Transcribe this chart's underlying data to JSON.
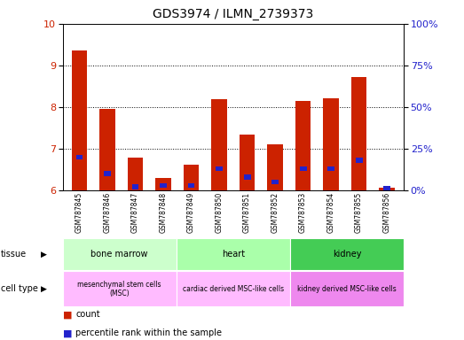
{
  "title": "GDS3974 / ILMN_2739373",
  "samples": [
    "GSM787845",
    "GSM787846",
    "GSM787847",
    "GSM787848",
    "GSM787849",
    "GSM787850",
    "GSM787851",
    "GSM787852",
    "GSM787853",
    "GSM787854",
    "GSM787855",
    "GSM787856"
  ],
  "count_values": [
    9.37,
    7.95,
    6.78,
    6.3,
    6.62,
    8.18,
    7.35,
    7.1,
    8.15,
    8.22,
    8.73,
    6.07
  ],
  "percentile_values": [
    20,
    10,
    2,
    3,
    3,
    13,
    8,
    5,
    13,
    13,
    18,
    1
  ],
  "ylim_left": [
    6,
    10
  ],
  "ylim_right": [
    0,
    100
  ],
  "yticks_left": [
    6,
    7,
    8,
    9,
    10
  ],
  "yticks_right": [
    0,
    25,
    50,
    75,
    100
  ],
  "bar_color_red": "#cc2200",
  "bar_color_blue": "#2222cc",
  "tissue_data": [
    {
      "label": "bone marrow",
      "start": 0,
      "end": 4,
      "color": "#ccffcc"
    },
    {
      "label": "heart",
      "start": 4,
      "end": 8,
      "color": "#aaffaa"
    },
    {
      "label": "kidney",
      "start": 8,
      "end": 12,
      "color": "#44cc55"
    }
  ],
  "cell_data": [
    {
      "label": "mesenchymal stem cells\n(MSC)",
      "start": 0,
      "end": 4,
      "color": "#ffbbff"
    },
    {
      "label": "cardiac derived MSC-like cells",
      "start": 4,
      "end": 8,
      "color": "#ffbbff"
    },
    {
      "label": "kidney derived MSC-like cells",
      "start": 8,
      "end": 12,
      "color": "#ee88ee"
    }
  ],
  "bar_width": 0.55,
  "percentile_bar_width": 0.25,
  "percentile_bar_height": 0.12
}
